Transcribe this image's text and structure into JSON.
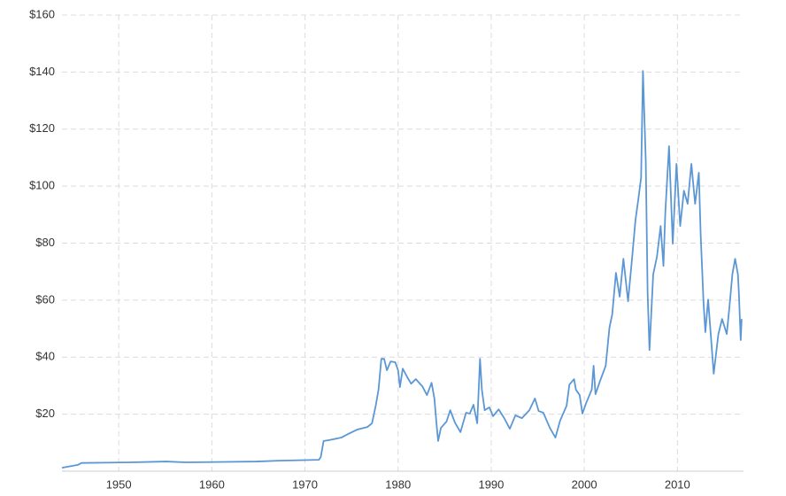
{
  "chart_data": {
    "type": "line",
    "x": [
      1943.9,
      1945.6,
      1946.0,
      1951.3,
      1955.1,
      1957.2,
      1964.8,
      1967.2,
      1971.5,
      1971.7,
      1972.0,
      1972.6,
      1973.9,
      1974.6,
      1975.6,
      1976.7,
      1977.2,
      1977.6,
      1977.9,
      1978.2,
      1978.5,
      1978.8,
      1979.2,
      1979.7,
      1980.0,
      1980.2,
      1980.5,
      1981.0,
      1981.4,
      1981.9,
      1982.6,
      1983.1,
      1983.6,
      1983.9,
      1984.1,
      1984.3,
      1984.6,
      1985.2,
      1985.6,
      1986.1,
      1986.7,
      1987.3,
      1987.7,
      1988.1,
      1988.5,
      1988.8,
      1989.0,
      1989.3,
      1989.8,
      1990.2,
      1990.8,
      1991.4,
      1992.0,
      1992.6,
      1993.3,
      1994.1,
      1994.7,
      1995.1,
      1995.6,
      1996.3,
      1996.9,
      1997.4,
      1998.1,
      1998.4,
      1998.9,
      1999.1,
      1999.5,
      1999.8,
      2000.2,
      2000.8,
      2001.0,
      2001.2,
      2001.7,
      2002.3,
      2002.7,
      2003.0,
      2003.4,
      2003.8,
      2004.2,
      2004.7,
      2005.1,
      2005.5,
      2005.8,
      2006.1,
      2006.3,
      2006.6,
      2006.8,
      2007.0,
      2007.4,
      2007.8,
      2008.2,
      2008.5,
      2008.7,
      2009.1,
      2009.5,
      2009.9,
      2010.3,
      2010.7,
      2011.1,
      2011.5,
      2011.9,
      2012.3,
      2012.5,
      2012.8,
      2013.0,
      2013.3,
      2013.6,
      2013.9,
      2014.4,
      2014.8,
      2015.3,
      2015.6,
      2015.9,
      2016.2,
      2016.5,
      2016.6,
      2016.8,
      2016.9
    ],
    "series": [
      {
        "color": "#5b97d5",
        "values": [
          1.2,
          2.2,
          2.9,
          3.1,
          3.4,
          3.1,
          3.4,
          3.7,
          4.0,
          5,
          10.6,
          10.9,
          11.8,
          13,
          14.6,
          15.5,
          16.8,
          23,
          28.6,
          39.4,
          39.4,
          35.4,
          38.5,
          38.2,
          35.4,
          29.5,
          36,
          32.9,
          30.7,
          32.3,
          29.8,
          26.7,
          31,
          25.5,
          17.7,
          10.6,
          15.2,
          17.4,
          21.4,
          17.1,
          13.7,
          20.5,
          20.2,
          23.3,
          16.8,
          39.4,
          28.6,
          21.4,
          22.4,
          19.3,
          21.7,
          18.6,
          14.9,
          19.6,
          18.6,
          21.4,
          25.5,
          21.1,
          20.5,
          15.2,
          11.8,
          17.7,
          23,
          30.4,
          32.3,
          28.6,
          26.7,
          20.2,
          23.9,
          28.6,
          37,
          27,
          31.7,
          37,
          50.3,
          55,
          69.6,
          61.2,
          74.5,
          59.6,
          73.6,
          88.2,
          95.3,
          103,
          140.4,
          109,
          62.7,
          42.5,
          69,
          75.2,
          86,
          72,
          90.7,
          114,
          79.8,
          107.8,
          86,
          98.4,
          93.8,
          107.8,
          93.8,
          104.7,
          82.9,
          59.6,
          48.8,
          60.2,
          47.2,
          34.2,
          48.1,
          53.4,
          48.1,
          58,
          69,
          74.5,
          69,
          62.7,
          46,
          53.4
        ]
      }
    ],
    "xlim": [
      1943.9,
      2017.1
    ],
    "xticks": [
      1950,
      1960,
      1970,
      1980,
      1990,
      2000,
      2010
    ],
    "ylim": [
      0,
      160
    ],
    "yticks": [
      {
        "value": 20,
        "label": "$20"
      },
      {
        "value": 40,
        "label": "$40"
      },
      {
        "value": 60,
        "label": "$60"
      },
      {
        "value": 80,
        "label": "$80"
      },
      {
        "value": 100,
        "label": "$100"
      },
      {
        "value": 120,
        "label": "$120"
      },
      {
        "value": 140,
        "label": "$140"
      },
      {
        "value": 160,
        "label": "$160"
      }
    ],
    "grid": true
  }
}
